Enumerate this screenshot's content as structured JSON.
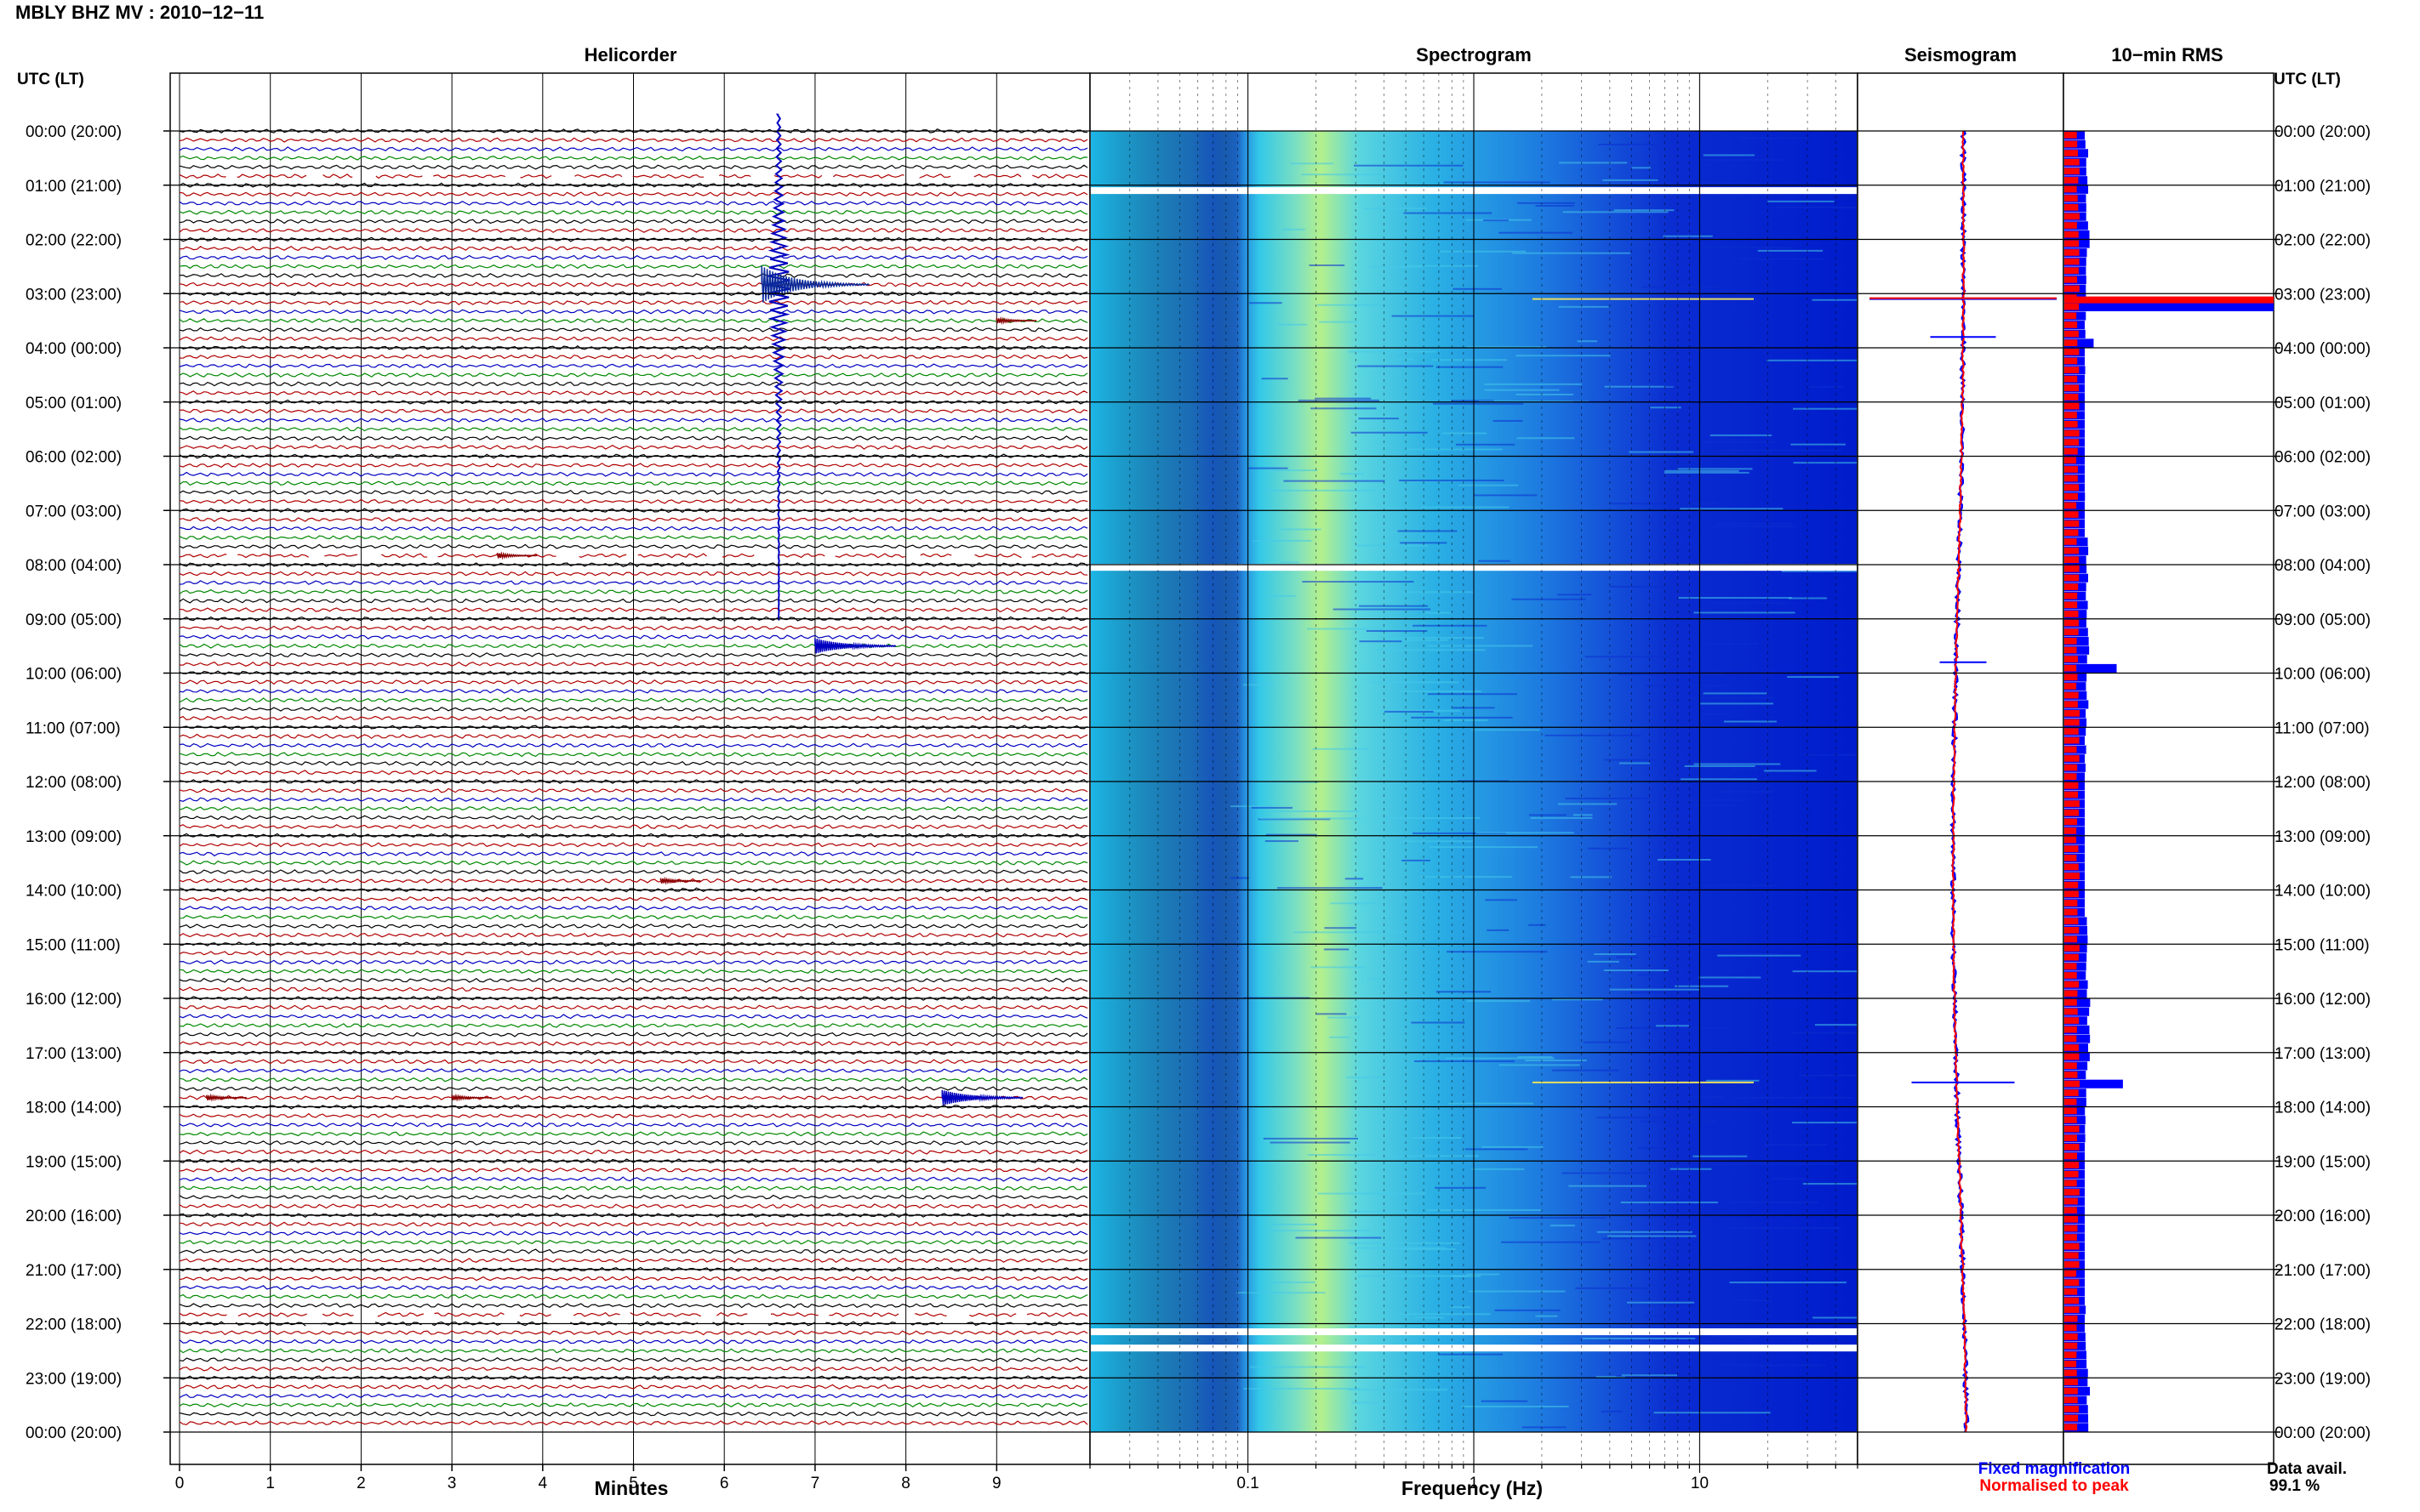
{
  "page": {
    "title": "MBLY BHZ MV : 2010−12−11",
    "utc_label_left": "UTC (LT)",
    "utc_label_right": "UTC (LT)",
    "data_avail_label": "Data avail.",
    "data_avail_value": "99.1 %",
    "legend_fixed": "Fixed magnification",
    "legend_normalised": "Normalised to peak",
    "colors": {
      "helicorder_lines": [
        "#000000",
        "#b00000",
        "#0000c0",
        "#008800"
      ],
      "fixed": "#0000ff",
      "normalised": "#ff0000",
      "gridline": "#000000"
    }
  },
  "time_labels": [
    "00:00 (20:00)",
    "01:00 (21:00)",
    "02:00 (22:00)",
    "03:00 (23:00)",
    "04:00 (00:00)",
    "05:00 (01:00)",
    "06:00 (02:00)",
    "07:00 (03:00)",
    "08:00 (04:00)",
    "09:00 (05:00)",
    "10:00 (06:00)",
    "11:00 (07:00)",
    "12:00 (08:00)",
    "13:00 (09:00)",
    "14:00 (10:00)",
    "15:00 (11:00)",
    "16:00 (12:00)",
    "17:00 (13:00)",
    "18:00 (14:00)",
    "19:00 (15:00)",
    "20:00 (16:00)",
    "21:00 (17:00)",
    "22:00 (18:00)",
    "23:00 (19:00)",
    "00:00 (20:00)"
  ],
  "chart_data": [
    {
      "type": "line",
      "title": "Helicorder",
      "xlabel": "Minutes",
      "x_ticks": [
        "0",
        "1",
        "2",
        "3",
        "4",
        "5",
        "6",
        "7",
        "8",
        "9"
      ],
      "xlim": [
        0,
        10
      ],
      "rows_per_hour": 6,
      "grid": true,
      "events": [
        {
          "hour": 2,
          "row": 5,
          "minute": 6.6,
          "amplitude": "large"
        },
        {
          "hour": 3,
          "row": 3,
          "minute": 9.0,
          "amplitude": "small"
        },
        {
          "hour": 9,
          "row": 3,
          "minute": 7.0,
          "amplitude": "medium"
        },
        {
          "hour": 17,
          "row": 5,
          "minute": 8.4,
          "amplitude": "medium"
        },
        {
          "hour": 17,
          "row": 5,
          "minute": 0.3,
          "amplitude": "small"
        },
        {
          "hour": 17,
          "row": 5,
          "minute": 3.0,
          "amplitude": "small"
        },
        {
          "hour": 13,
          "row": 5,
          "minute": 5.3,
          "amplitude": "small"
        },
        {
          "hour": 7,
          "row": 5,
          "minute": 3.5,
          "amplitude": "small"
        }
      ],
      "gaps": [
        {
          "hour": 0,
          "row": 5
        },
        {
          "hour": 7,
          "row": 5
        },
        {
          "hour": 21,
          "row": 5
        },
        {
          "hour": 22,
          "row": 0
        }
      ]
    },
    {
      "type": "heatmap",
      "title": "Spectrogram",
      "xlabel": "Frequency (Hz)",
      "x_scale": "log",
      "x_ticks": [
        "0.1",
        "1",
        "10"
      ],
      "xlim": [
        0.02,
        50
      ],
      "white_gap_hours": [
        1.1,
        8.05,
        22.15,
        22.45
      ],
      "line_feature_hours": [
        3.1,
        17.55
      ]
    },
    {
      "type": "line",
      "title": "Seismogram",
      "series": [
        {
          "name": "Fixed magnification",
          "color": "#0000ff"
        },
        {
          "name": "Normalised to peak",
          "color": "#ff0000"
        }
      ],
      "spikes": [
        {
          "hour": 3.1,
          "amplitude": 1.0
        },
        {
          "hour": 3.8,
          "amplitude": 0.35
        },
        {
          "hour": 9.8,
          "amplitude": 0.25
        },
        {
          "hour": 17.55,
          "amplitude": 0.55
        }
      ]
    },
    {
      "type": "bar",
      "title": "10−min RMS",
      "orientation": "horizontal",
      "interval_minutes": 10,
      "series": [
        {
          "name": "Fixed magnification",
          "color": "#0000ff"
        },
        {
          "name": "Normalised to peak",
          "color": "#ff0000"
        }
      ],
      "peaks": [
        {
          "hour": 3.1,
          "value": 1.0
        },
        {
          "hour": 3.8,
          "value": 0.14
        },
        {
          "hour": 9.8,
          "value": 0.25
        },
        {
          "hour": 17.55,
          "value": 0.28
        }
      ]
    }
  ]
}
